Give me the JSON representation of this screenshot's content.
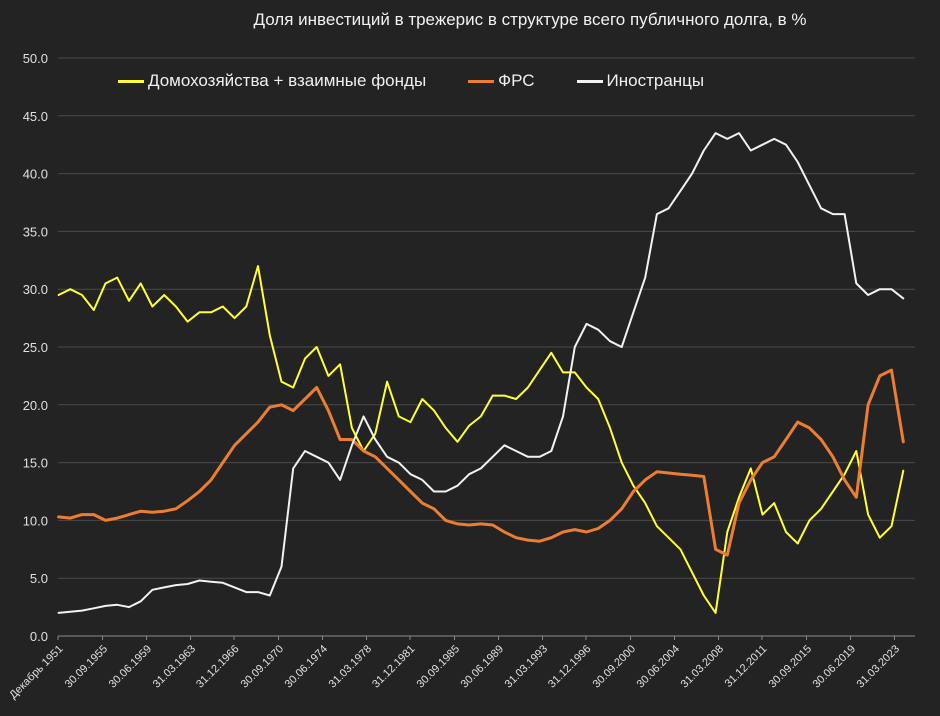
{
  "chart_data": {
    "type": "line",
    "title": "Доля инвестиций  в трежерис в структуре всего публичного долга, в %",
    "xlabel": "",
    "ylabel": "",
    "ylim": [
      0,
      50
    ],
    "yticks": [
      "0.0",
      "5.0",
      "10.0",
      "15.0",
      "20.0",
      "25.0",
      "30.0",
      "35.0",
      "40.0",
      "45.0",
      "50.0"
    ],
    "xlim": [
      1951.95,
      2025.0
    ],
    "xtick_values": [
      1951.95,
      1955.75,
      1959.5,
      1963.25,
      1966.95,
      1970.75,
      1974.5,
      1978.25,
      1981.95,
      1985.75,
      1989.5,
      1993.25,
      1996.95,
      2000.75,
      2004.5,
      2008.25,
      2011.95,
      2015.75,
      2019.5,
      2023.25
    ],
    "xtick_labels": [
      "Декабрь 1951",
      "30.09.1955",
      "30.06.1959",
      "31.03.1963",
      "31.12.1966",
      "30.09.1970",
      "30.06.1974",
      "31.03.1978",
      "31.12.1981",
      "30.09.1985",
      "30.06.1989",
      "31.03.1993",
      "31.12.1996",
      "30.09.2000",
      "30.06.2004",
      "31.03.2008",
      "31.12.2011",
      "30.09.2015",
      "30.06.2019",
      "31.03.2023"
    ],
    "grid": true,
    "legend_position": "top",
    "series": [
      {
        "name": "Домохозяйства + взаимные фонды",
        "color": "#ffff33",
        "x": [
          1952,
          1953,
          1954,
          1955,
          1956,
          1957,
          1958,
          1959,
          1960,
          1961,
          1962,
          1963,
          1964,
          1965,
          1966,
          1967,
          1968,
          1969,
          1970,
          1971,
          1972,
          1973,
          1974,
          1975,
          1976,
          1977,
          1978,
          1979,
          1980,
          1981,
          1982,
          1983,
          1984,
          1985,
          1986,
          1987,
          1988,
          1989,
          1990,
          1991,
          1992,
          1993,
          1994,
          1995,
          1996,
          1997,
          1998,
          1999,
          2000,
          2001,
          2002,
          2003,
          2004,
          2005,
          2006,
          2007,
          2008,
          2009,
          2010,
          2011,
          2012,
          2013,
          2014,
          2015,
          2016,
          2017,
          2018,
          2019,
          2020,
          2021,
          2022,
          2023,
          2024
        ],
        "y": [
          29.5,
          30.0,
          29.5,
          28.2,
          30.5,
          31.0,
          29.0,
          30.5,
          28.5,
          29.5,
          28.5,
          27.2,
          28.0,
          28.0,
          28.5,
          27.5,
          28.5,
          32.0,
          26.0,
          22.0,
          21.5,
          24.0,
          25.0,
          22.5,
          23.5,
          18.0,
          16.0,
          17.5,
          22.0,
          19.0,
          18.5,
          20.5,
          19.5,
          18.0,
          16.8,
          18.2,
          19.0,
          20.8,
          20.8,
          20.5,
          21.5,
          23.0,
          24.5,
          22.8,
          22.8,
          21.5,
          20.5,
          18.0,
          15.0,
          13.0,
          11.5,
          9.5,
          8.5,
          7.5,
          5.5,
          3.5,
          2.0,
          9.0,
          12.0,
          14.5,
          10.5,
          11.5,
          9.0,
          8.0,
          10.0,
          11.0,
          12.5,
          14.0,
          16.0,
          10.5,
          8.5,
          9.5,
          14.3
        ]
      },
      {
        "name": "ФРС",
        "color": "#ed7d31",
        "x": [
          1952,
          1953,
          1954,
          1955,
          1956,
          1957,
          1958,
          1959,
          1960,
          1961,
          1962,
          1963,
          1964,
          1965,
          1966,
          1967,
          1968,
          1969,
          1970,
          1971,
          1972,
          1973,
          1974,
          1975,
          1976,
          1977,
          1978,
          1979,
          1980,
          1981,
          1982,
          1983,
          1984,
          1985,
          1986,
          1987,
          1988,
          1989,
          1990,
          1991,
          1992,
          1993,
          1994,
          1995,
          1996,
          1997,
          1998,
          1999,
          2000,
          2001,
          2002,
          2003,
          2004,
          2005,
          2006,
          2007,
          2008,
          2009,
          2010,
          2011,
          2012,
          2013,
          2014,
          2015,
          2016,
          2017,
          2018,
          2019,
          2020,
          2021,
          2022,
          2023,
          2024
        ],
        "y": [
          10.3,
          10.2,
          10.5,
          10.5,
          10.0,
          10.2,
          10.5,
          10.8,
          10.7,
          10.8,
          11.0,
          11.7,
          12.5,
          13.5,
          15.0,
          16.5,
          17.5,
          18.5,
          19.8,
          20.0,
          19.5,
          20.5,
          21.5,
          19.5,
          17.0,
          17.0,
          16.0,
          15.5,
          14.5,
          13.5,
          12.5,
          11.5,
          11.0,
          10.0,
          9.7,
          9.6,
          9.7,
          9.6,
          9.0,
          8.5,
          8.3,
          8.2,
          8.5,
          9.0,
          9.2,
          9.0,
          9.3,
          10.0,
          11.0,
          12.5,
          13.5,
          14.2,
          14.1,
          14.0,
          13.9,
          13.8,
          7.5,
          7.0,
          11.5,
          13.5,
          15.0,
          15.5,
          17.0,
          18.5,
          18.0,
          17.0,
          15.5,
          13.5,
          12.0,
          20.0,
          22.5,
          23.0,
          16.8
        ]
      },
      {
        "name": "Иностранцы",
        "color": "#f2f2f2",
        "x": [
          1952,
          1953,
          1954,
          1955,
          1956,
          1957,
          1958,
          1959,
          1960,
          1961,
          1962,
          1963,
          1964,
          1965,
          1966,
          1967,
          1968,
          1969,
          1970,
          1971,
          1972,
          1973,
          1974,
          1975,
          1976,
          1977,
          1978,
          1979,
          1980,
          1981,
          1982,
          1983,
          1984,
          1985,
          1986,
          1987,
          1988,
          1989,
          1990,
          1991,
          1992,
          1993,
          1994,
          1995,
          1996,
          1997,
          1998,
          1999,
          2000,
          2001,
          2002,
          2003,
          2004,
          2005,
          2006,
          2007,
          2008,
          2009,
          2010,
          2011,
          2012,
          2013,
          2014,
          2015,
          2016,
          2017,
          2018,
          2019,
          2020,
          2021,
          2022,
          2023,
          2024
        ],
        "y": [
          2.0,
          2.1,
          2.2,
          2.4,
          2.6,
          2.7,
          2.5,
          3.0,
          4.0,
          4.2,
          4.4,
          4.5,
          4.8,
          4.7,
          4.6,
          4.2,
          3.8,
          3.8,
          3.5,
          6.0,
          14.5,
          16.0,
          15.5,
          15.0,
          13.5,
          16.5,
          19.0,
          17.0,
          15.5,
          15.0,
          14.0,
          13.5,
          12.5,
          12.5,
          13.0,
          14.0,
          14.5,
          15.5,
          16.5,
          16.0,
          15.5,
          15.5,
          16.0,
          19.0,
          25.0,
          27.0,
          26.5,
          25.5,
          25.0,
          28.0,
          31.0,
          36.5,
          37.0,
          38.5,
          40.0,
          42.0,
          43.5,
          43.0,
          43.5,
          42.0,
          42.5,
          43.0,
          42.5,
          41.0,
          39.0,
          37.0,
          36.5,
          36.5,
          30.5,
          29.5,
          30.0,
          30.0,
          29.2
        ]
      }
    ]
  }
}
